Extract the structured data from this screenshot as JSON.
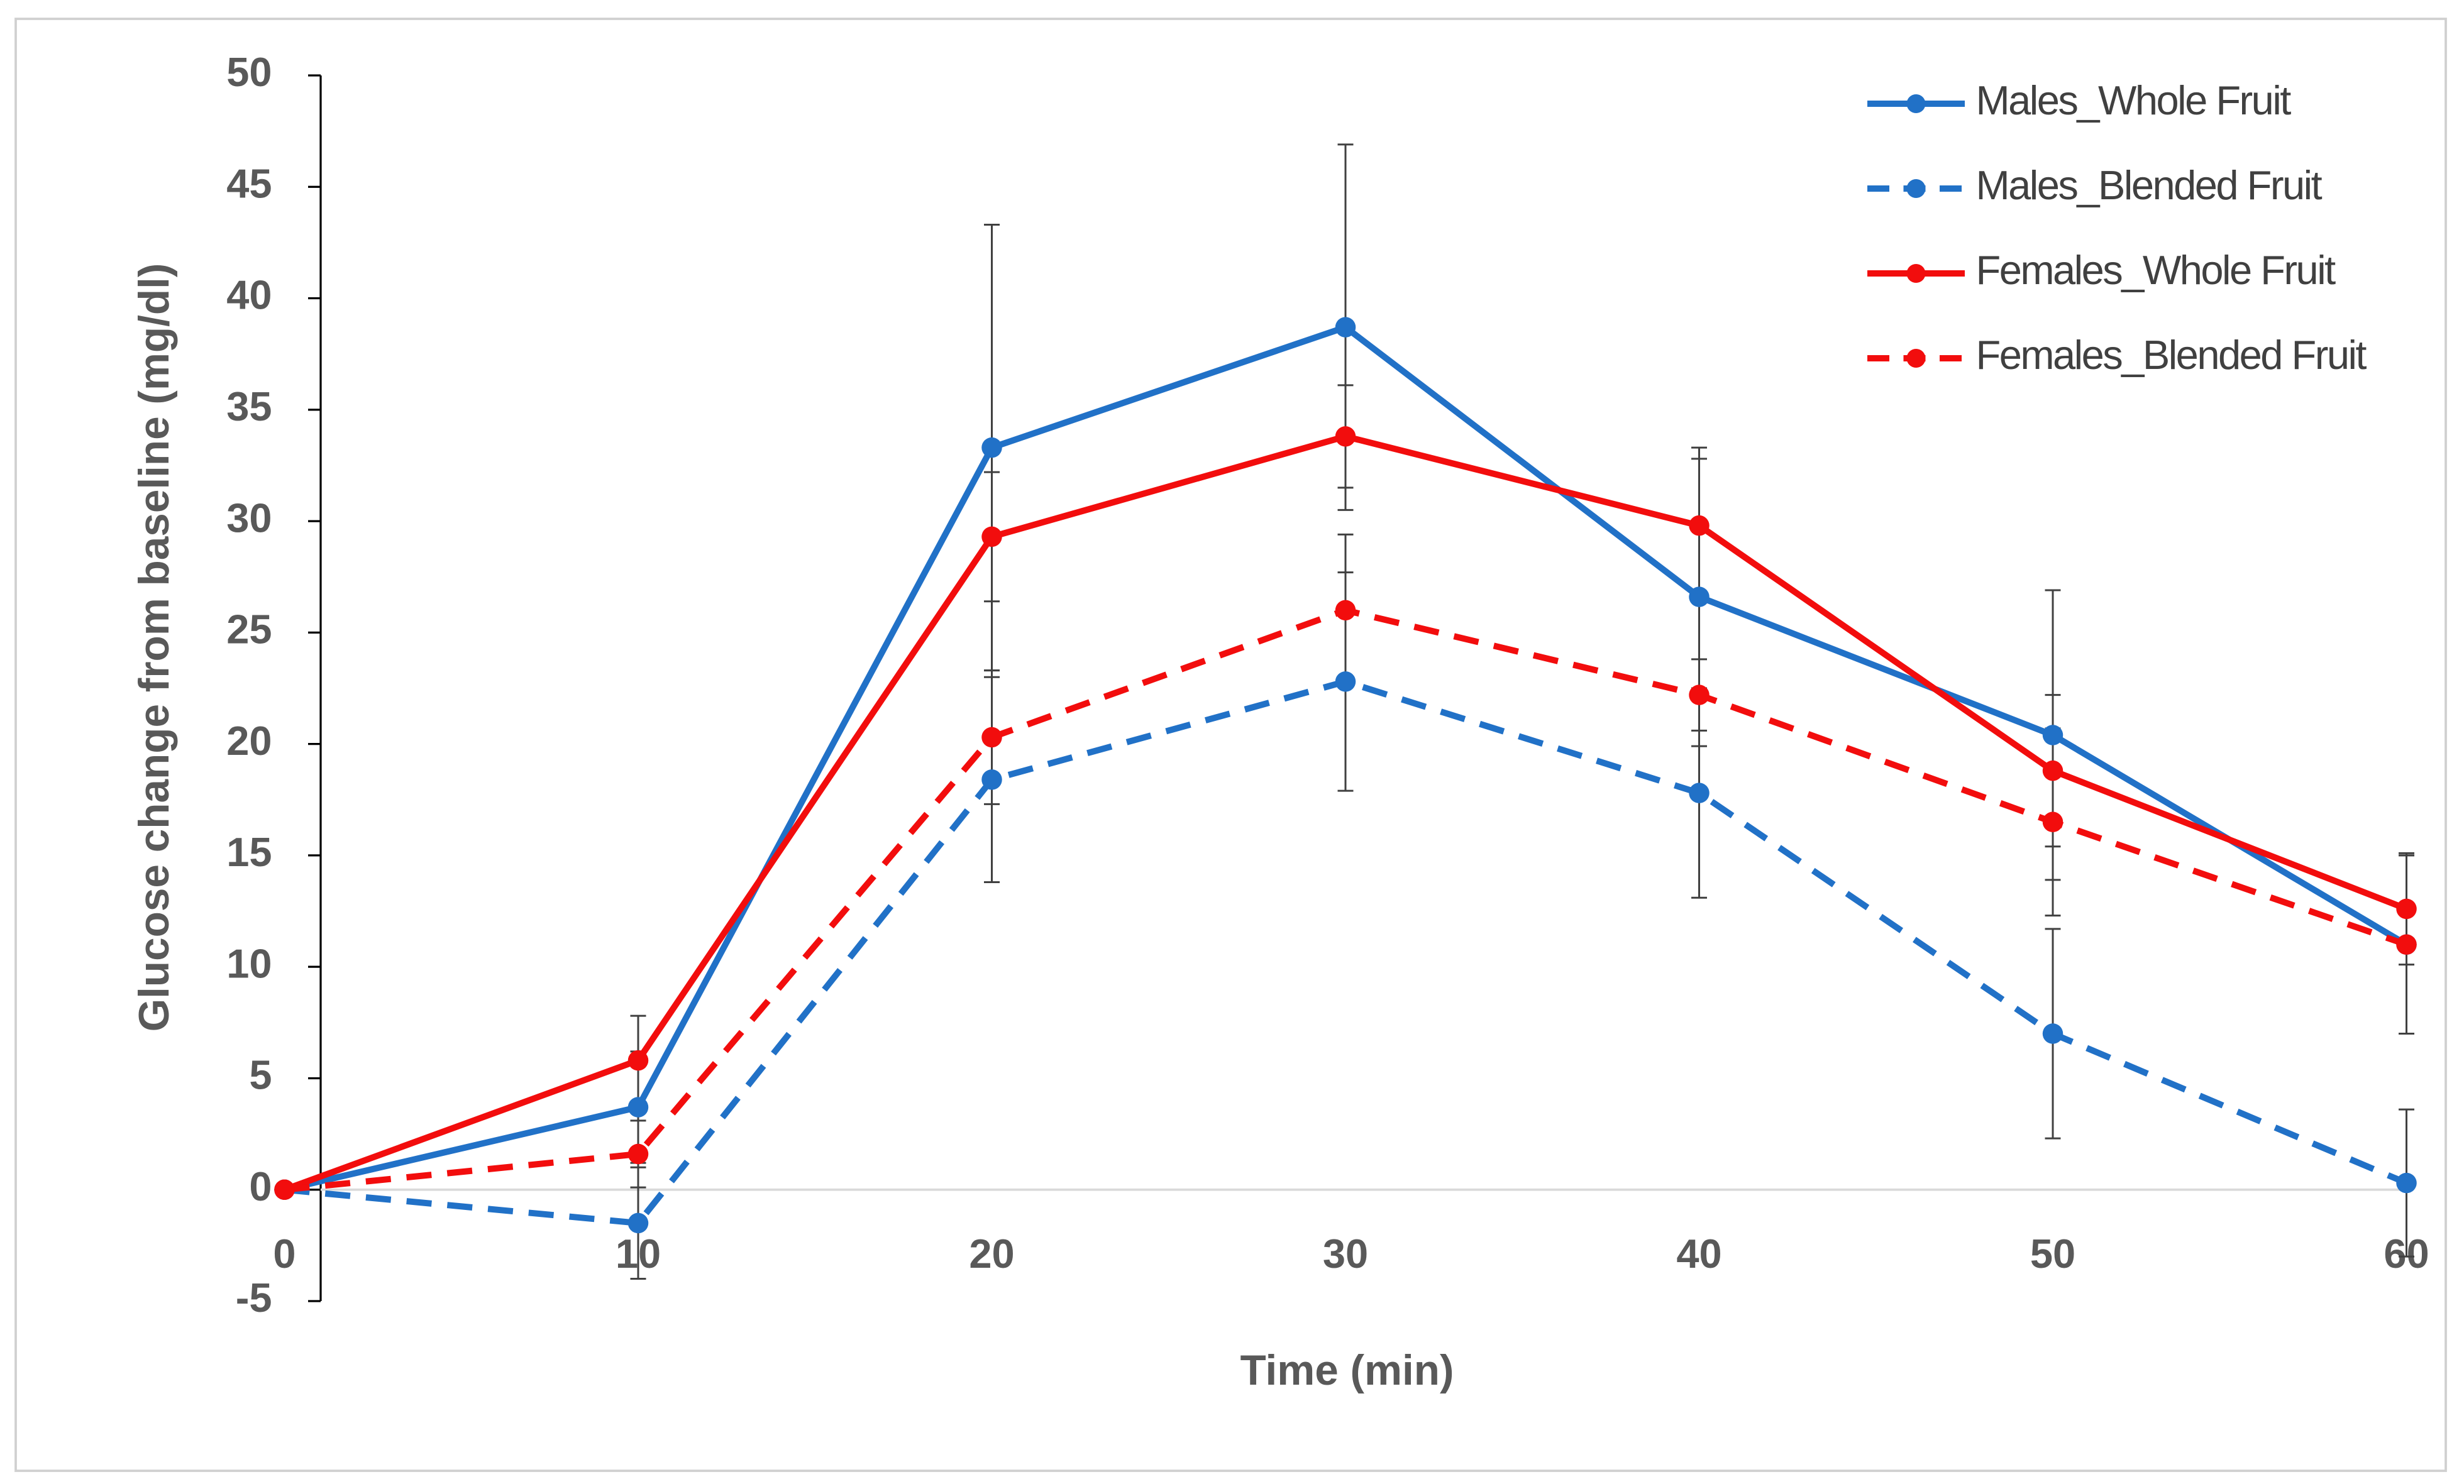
{
  "chart_data": {
    "type": "line",
    "x_label": "Time (min)",
    "y_label": "Glucose change from baseline  (mg/dl)",
    "x": [
      0,
      10,
      20,
      30,
      40,
      50,
      60
    ],
    "xlim": [
      0,
      60
    ],
    "xticks": [
      0,
      10,
      20,
      30,
      40,
      50,
      60
    ],
    "ylim": [
      -5,
      50
    ],
    "yticks": [
      -5,
      0,
      5,
      10,
      15,
      20,
      25,
      30,
      35,
      40,
      45,
      50
    ],
    "grid": false,
    "legend": "top-right",
    "series": [
      {
        "name": "Males_Whole Fruit",
        "color": "#2171c7",
        "dashed": false,
        "values": [
          0,
          3.7,
          33.3,
          38.7,
          26.6,
          20.4,
          11.0
        ],
        "errors": [
          0,
          2.5,
          10.0,
          8.2,
          6.7,
          6.5,
          4.0
        ]
      },
      {
        "name": "Males_Blended Fruit",
        "color": "#2171c7",
        "dashed": true,
        "values": [
          0,
          -1.5,
          18.4,
          22.8,
          17.8,
          7.0,
          0.3
        ],
        "errors": [
          0,
          2.5,
          4.6,
          4.9,
          4.7,
          4.7,
          3.3
        ]
      },
      {
        "name": "Females_Whole Fruit",
        "color": "#f20d0d",
        "dashed": false,
        "values": [
          0,
          5.8,
          29.3,
          33.8,
          29.8,
          18.8,
          12.6
        ],
        "errors": [
          0,
          2.0,
          2.9,
          2.3,
          3.0,
          3.4,
          2.5
        ]
      },
      {
        "name": "Females_Blended Fruit",
        "color": "#f20d0d",
        "dashed": true,
        "values": [
          0,
          1.6,
          20.3,
          26.0,
          22.2,
          16.5,
          11.0
        ],
        "errors": [
          0,
          1.5,
          3.0,
          3.4,
          1.6,
          4.2,
          4.0
        ]
      }
    ]
  }
}
